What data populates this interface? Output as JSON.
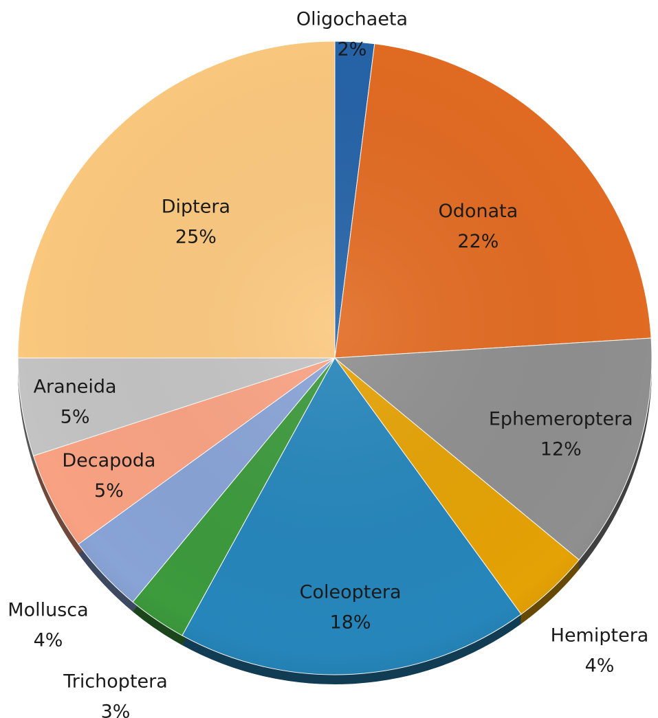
{
  "chart_data": {
    "type": "pie",
    "title": "",
    "start_angle_deg": 0,
    "direction": "clockwise",
    "slices": [
      {
        "label": "Oligochaeta",
        "value": 2,
        "pct_label": "2%",
        "color": "#2563a8"
      },
      {
        "label": "Odonata",
        "value": 22,
        "pct_label": "22%",
        "color": "#e26b22"
      },
      {
        "label": "Ephemeroptera",
        "value": 12,
        "pct_label": "12%",
        "color": "#8f8f8f"
      },
      {
        "label": "Hemiptera",
        "value": 4,
        "pct_label": "4%",
        "color": "#e5a205"
      },
      {
        "label": "Coleoptera",
        "value": 18,
        "pct_label": "18%",
        "color": "#2686bb"
      },
      {
        "label": "Trichoptera",
        "value": 3,
        "pct_label": "3%",
        "color": "#3d9a3d"
      },
      {
        "label": "Mollusca",
        "value": 4,
        "pct_label": "4%",
        "color": "#88a3d6"
      },
      {
        "label": "Decapoda",
        "value": 5,
        "pct_label": "5%",
        "color": "#f9a283"
      },
      {
        "label": "Araneida",
        "value": 5,
        "pct_label": "5%",
        "color": "#c3c3c3"
      },
      {
        "label": "Diptera",
        "value": 25,
        "pct_label": "25%",
        "color": "#fbc87e"
      }
    ]
  }
}
